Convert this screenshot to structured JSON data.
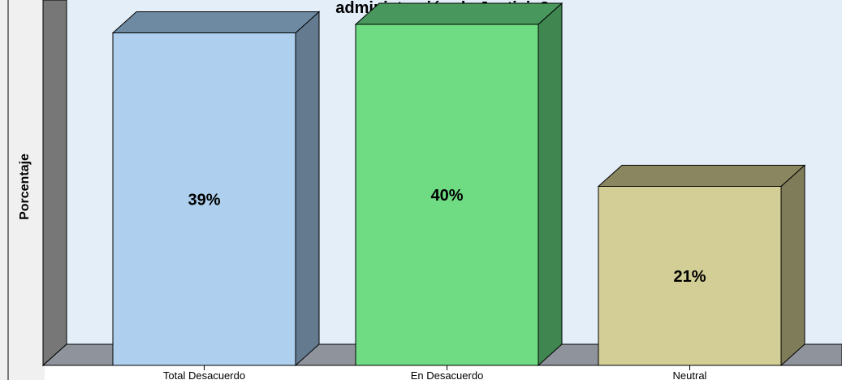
{
  "chart_data": {
    "type": "bar",
    "title": "administración de Justicia?",
    "ylabel": "Porcentaje",
    "xlabel": "",
    "ylim": [
      0,
      45
    ],
    "categories": [
      "Total Desacuerdo",
      "En Desacuerdo",
      "Neutral"
    ],
    "values": [
      39,
      40,
      21
    ],
    "data_labels": [
      "39%",
      "40%",
      "21%"
    ],
    "colors": {
      "front": [
        "#aed0ee",
        "#6fdc84",
        "#d3ce96"
      ],
      "side": [
        "#637a8f",
        "#3f8651",
        "#7f7c5a"
      ],
      "top": [
        "#6e8aa2",
        "#48975c",
        "#8a8660"
      ],
      "plot_bg": "#e3eef9",
      "left_wall": "#777777",
      "floor": "#8f939b"
    },
    "grid": false,
    "legend": "none",
    "style": "3d"
  }
}
